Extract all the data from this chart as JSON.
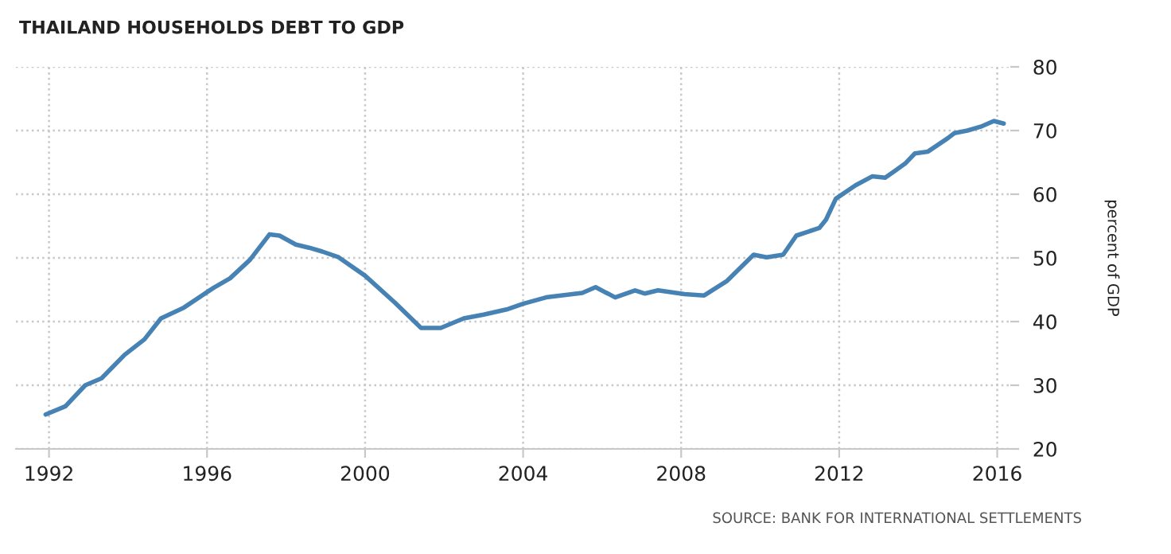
{
  "chart_data": {
    "type": "line",
    "title": "THAILAND HOUSEHOLDS DEBT TO GDP",
    "ylabel": "percent of GDP",
    "annotations": [
      "SOURCE: BANK FOR INTERNATIONAL SETTLEMENTS"
    ],
    "x": [
      "1991-12",
      "1992-06",
      "1992-12",
      "1993-05",
      "1993-12",
      "1994-06",
      "1994-11",
      "1995-06",
      "1996-03",
      "1996-08",
      "1997-02",
      "1997-08",
      "1997-11",
      "1998-04",
      "1998-08",
      "1998-12",
      "1999-05",
      "2000-01",
      "2000-10",
      "2001-06",
      "2001-12",
      "2002-07",
      "2003-01",
      "2003-08",
      "2004-01",
      "2004-08",
      "2005-07",
      "2005-11",
      "2006-05",
      "2006-11",
      "2007-02",
      "2007-06",
      "2008-02",
      "2008-08",
      "2009-03",
      "2009-11",
      "2010-03",
      "2010-08",
      "2010-12",
      "2011-07",
      "2011-09",
      "2011-12",
      "2012-06",
      "2012-11",
      "2013-03",
      "2013-06",
      "2013-09",
      "2013-12",
      "2014-04",
      "2014-10",
      "2014-12",
      "2015-04",
      "2015-08",
      "2015-12",
      "2016-03"
    ],
    "series": [
      {
        "color": "#4682b4",
        "values": [
          25.4,
          26.7,
          30.0,
          31.1,
          34.8,
          37.2,
          40.5,
          42.2,
          45.3,
          46.8,
          49.7,
          53.7,
          53.5,
          52.1,
          51.6,
          51.0,
          50.1,
          47.2,
          43.0,
          39.0,
          39.0,
          40.5,
          41.1,
          41.9,
          42.8,
          43.8,
          44.5,
          45.4,
          43.8,
          44.9,
          44.4,
          44.9,
          44.3,
          44.1,
          46.4,
          50.5,
          50.1,
          50.5,
          53.5,
          54.7,
          56.0,
          59.3,
          61.4,
          62.8,
          62.6,
          63.7,
          64.8,
          66.4,
          66.7,
          68.8,
          69.6,
          70.0,
          70.6,
          71.5,
          71.1
        ]
      }
    ],
    "xlim": [
      "1991-03",
      "2016-05"
    ],
    "xticks": [
      "1992",
      "1996",
      "2000",
      "2004",
      "2008",
      "2012",
      "2016"
    ],
    "ylim": [
      20,
      80
    ],
    "yticks": [
      20,
      30,
      40,
      50,
      60,
      70,
      80
    ],
    "grid": true,
    "marker": "none",
    "line_style": "solid"
  }
}
